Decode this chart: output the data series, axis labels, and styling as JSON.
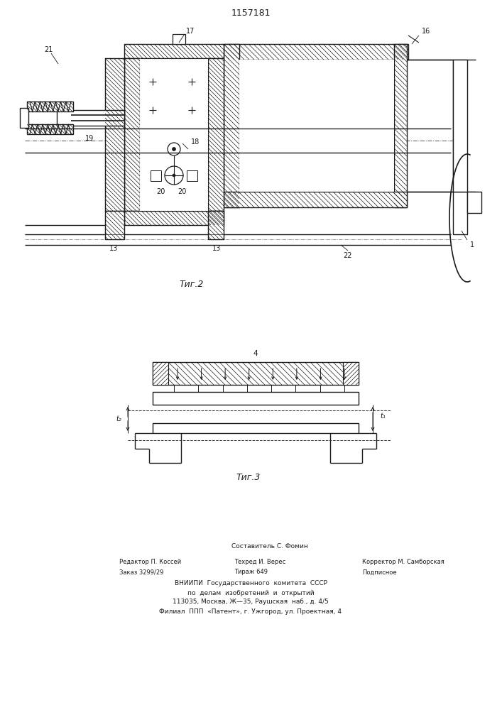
{
  "title": "1157181",
  "fig2_label": "Τиг.2",
  "fig3_label": "Τиг.3",
  "line_color": "#1a1a1a",
  "footer_line1": "Составитель С. Фомин",
  "footer_line2a": "Редактор П. Коссей",
  "footer_line2b": "Техред И. Верес",
  "footer_line2c": "Корректор М. Самборская",
  "footer_line3a": "Заказ 3299/29",
  "footer_line3b": "Тираж 649",
  "footer_line3c": "Подписное",
  "footer_line4": "ВНИИПИ  Государственного  комитета  СССР",
  "footer_line5": "по  делам  изобретений  и  открытий",
  "footer_line6": "113035, Москва, Ж—35, Раушская  наб., д. 4/5",
  "footer_line7": "Филиал  ППП  «Патент», г. Ужгород, ул. Проектная, 4"
}
